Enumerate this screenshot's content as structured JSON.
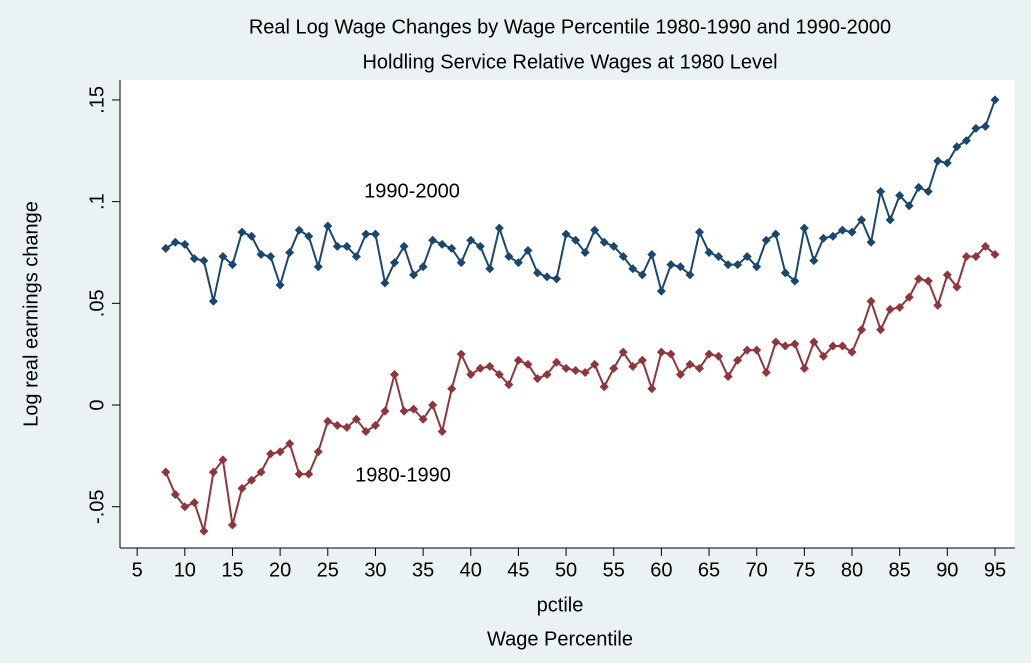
{
  "chart_data": {
    "type": "line",
    "title": "Real Log Wage Changes by Wage Percentile 1980-1990 and 1990-2000",
    "subtitle": "Holdling Service Relative Wages at 1980 Level",
    "x_label": "pctile",
    "y_label": "Log real earnings change",
    "note": "Wage Percentile",
    "annotations": [
      "1990-2000",
      "1980-1990"
    ],
    "x": [
      8,
      9,
      10,
      11,
      12,
      13,
      14,
      15,
      16,
      17,
      18,
      19,
      20,
      21,
      22,
      23,
      24,
      25,
      26,
      27,
      28,
      29,
      30,
      31,
      32,
      33,
      34,
      35,
      36,
      37,
      38,
      39,
      40,
      41,
      42,
      43,
      44,
      45,
      46,
      47,
      48,
      49,
      50,
      51,
      52,
      53,
      54,
      55,
      56,
      57,
      58,
      59,
      60,
      61,
      62,
      63,
      64,
      65,
      66,
      67,
      68,
      69,
      70,
      71,
      72,
      73,
      74,
      75,
      76,
      77,
      78,
      79,
      80,
      81,
      82,
      83,
      84,
      85,
      86,
      87,
      88,
      89,
      90,
      91,
      92,
      93,
      94,
      95
    ],
    "series": [
      {
        "name": "1990-2000",
        "color": "#1a476f",
        "values": [
          0.077,
          0.08,
          0.079,
          0.072,
          0.071,
          0.051,
          0.073,
          0.069,
          0.085,
          0.083,
          0.074,
          0.073,
          0.059,
          0.075,
          0.086,
          0.083,
          0.068,
          0.088,
          0.078,
          0.078,
          0.073,
          0.084,
          0.084,
          0.06,
          0.07,
          0.078,
          0.064,
          0.068,
          0.081,
          0.079,
          0.077,
          0.07,
          0.081,
          0.078,
          0.067,
          0.087,
          0.073,
          0.07,
          0.076,
          0.065,
          0.063,
          0.062,
          0.084,
          0.081,
          0.075,
          0.086,
          0.08,
          0.078,
          0.073,
          0.067,
          0.064,
          0.074,
          0.056,
          0.069,
          0.068,
          0.064,
          0.085,
          0.075,
          0.073,
          0.069,
          0.069,
          0.073,
          0.068,
          0.081,
          0.084,
          0.065,
          0.061,
          0.087,
          0.071,
          0.082,
          0.083,
          0.086,
          0.085,
          0.091,
          0.08,
          0.105,
          0.091,
          0.103,
          0.098,
          0.107,
          0.105,
          0.12,
          0.119,
          0.127,
          0.13,
          0.136,
          0.137,
          0.15
        ]
      },
      {
        "name": "1980-1990",
        "color": "#90353b",
        "values": [
          -0.033,
          -0.044,
          -0.05,
          -0.048,
          -0.062,
          -0.033,
          -0.027,
          -0.059,
          -0.041,
          -0.037,
          -0.033,
          -0.024,
          -0.023,
          -0.019,
          -0.034,
          -0.034,
          -0.023,
          -0.008,
          -0.01,
          -0.011,
          -0.007,
          -0.013,
          -0.01,
          -0.003,
          0.015,
          -0.003,
          -0.002,
          -0.007,
          0.0,
          -0.013,
          0.008,
          0.025,
          0.015,
          0.018,
          0.019,
          0.015,
          0.01,
          0.022,
          0.02,
          0.013,
          0.015,
          0.021,
          0.018,
          0.017,
          0.016,
          0.02,
          0.009,
          0.018,
          0.026,
          0.019,
          0.022,
          0.008,
          0.026,
          0.025,
          0.015,
          0.02,
          0.018,
          0.025,
          0.024,
          0.014,
          0.022,
          0.027,
          0.027,
          0.016,
          0.031,
          0.029,
          0.03,
          0.018,
          0.031,
          0.024,
          0.029,
          0.029,
          0.026,
          0.037,
          0.051,
          0.037,
          0.047,
          0.048,
          0.053,
          0.062,
          0.061,
          0.049,
          0.064,
          0.058,
          0.073,
          0.073,
          0.078,
          0.074
        ]
      }
    ],
    "xlim": [
      3.2,
      97.1
    ],
    "xticks": [
      5,
      10,
      15,
      20,
      25,
      30,
      35,
      40,
      45,
      50,
      55,
      60,
      65,
      70,
      75,
      80,
      85,
      90,
      95
    ],
    "ylim": [
      -0.0703,
      0.1598
    ],
    "yticks": [
      {
        "value": -0.05,
        "label": "-.05"
      },
      0,
      {
        "value": 0.05,
        "label": ".05"
      },
      {
        "value": 0.1,
        "label": ".1"
      },
      {
        "value": 0.15,
        "label": ".15"
      }
    ],
    "grid": false
  }
}
